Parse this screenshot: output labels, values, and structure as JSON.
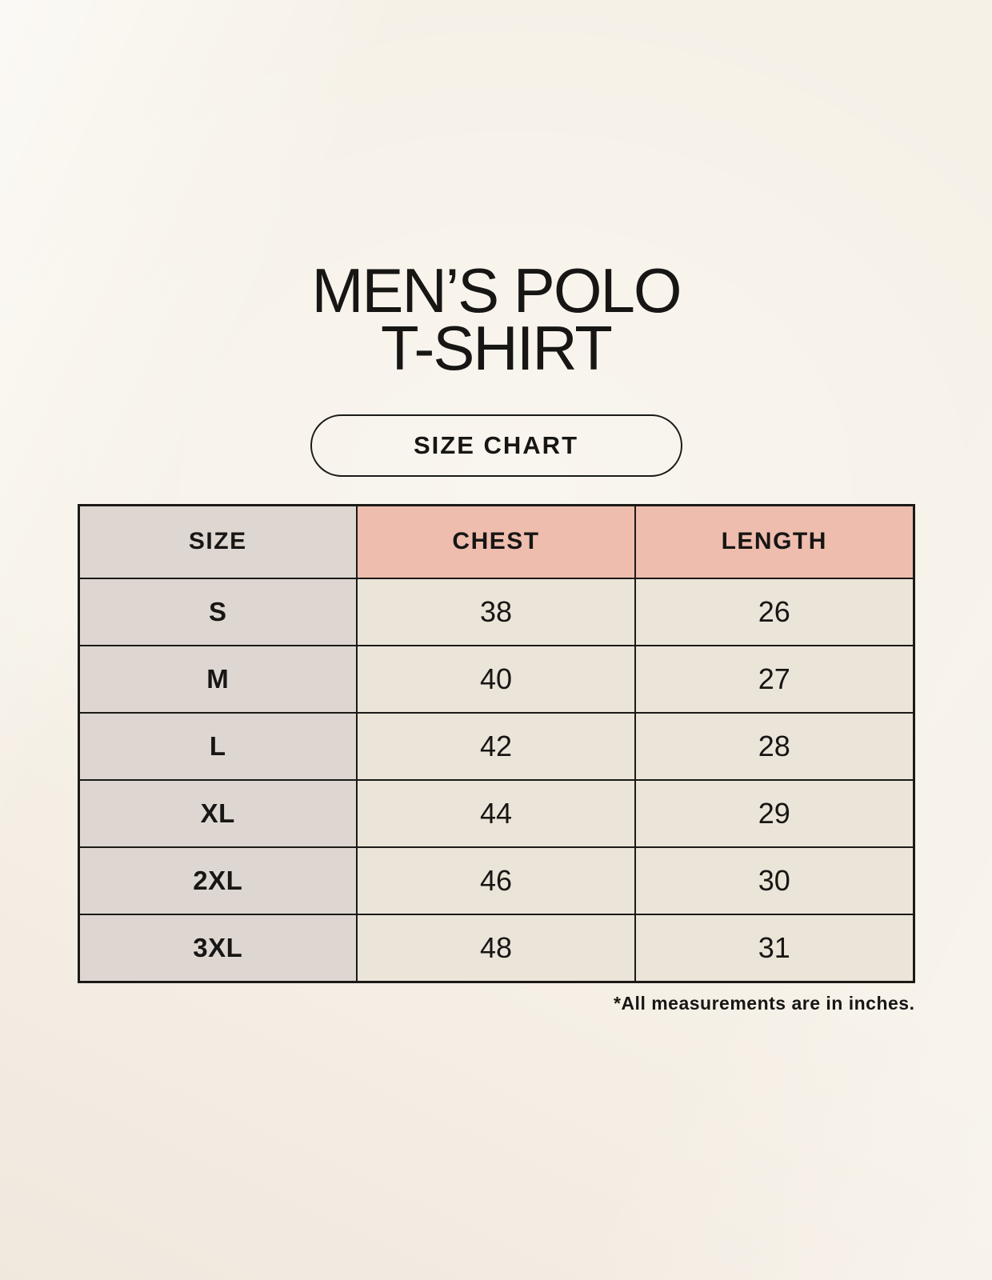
{
  "title": {
    "line1": "MEN’S POLO",
    "line2": "T-SHIRT"
  },
  "badge": {
    "label": "SIZE CHART"
  },
  "chart_data": {
    "type": "table",
    "title": "MEN’S POLO T-SHIRT",
    "subtitle": "SIZE CHART",
    "columns": [
      "SIZE",
      "CHEST",
      "LENGTH"
    ],
    "rows": [
      [
        "S",
        "38",
        "26"
      ],
      [
        "M",
        "40",
        "27"
      ],
      [
        "L",
        "42",
        "28"
      ],
      [
        "XL",
        "44",
        "29"
      ],
      [
        "2XL",
        "46",
        "30"
      ],
      [
        "3XL",
        "48",
        "31"
      ]
    ],
    "footnote": "*All measurements are in inches.",
    "units": "inches"
  },
  "colors": {
    "background": "#f6f1e7",
    "text": "#171614",
    "table_border": "#1b1a17",
    "header_measure_bg": "#eebdae",
    "size_col_bg": "#ded7d1",
    "value_cell_bg": "#ebe4d8"
  }
}
